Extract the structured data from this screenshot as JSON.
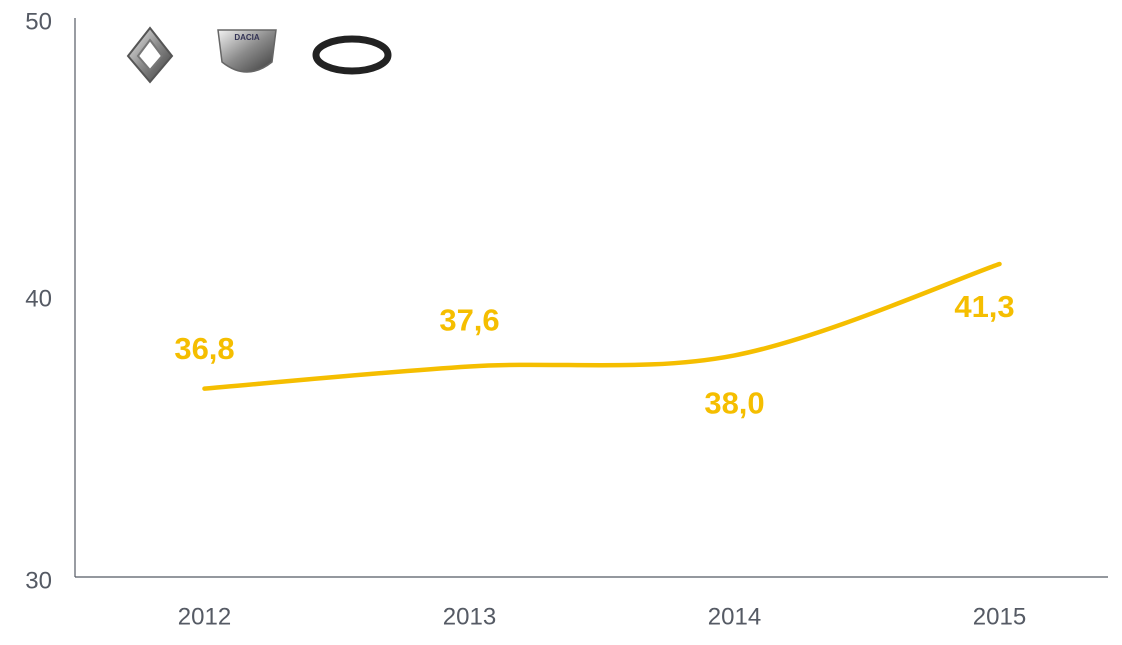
{
  "chart_data": {
    "type": "line",
    "categories": [
      "2012",
      "2013",
      "2014",
      "2015"
    ],
    "series": [
      {
        "color": "#f5be00",
        "values": [
          36.8,
          37.6,
          38.0,
          41.3
        ],
        "value_labels": [
          "36,8",
          "37,6",
          "38,0",
          "41,3"
        ]
      }
    ],
    "ylim": [
      30,
      50
    ],
    "yticks": [
      30,
      40,
      50
    ],
    "grid": false
  },
  "logos": {
    "dacia": "DACIA"
  }
}
